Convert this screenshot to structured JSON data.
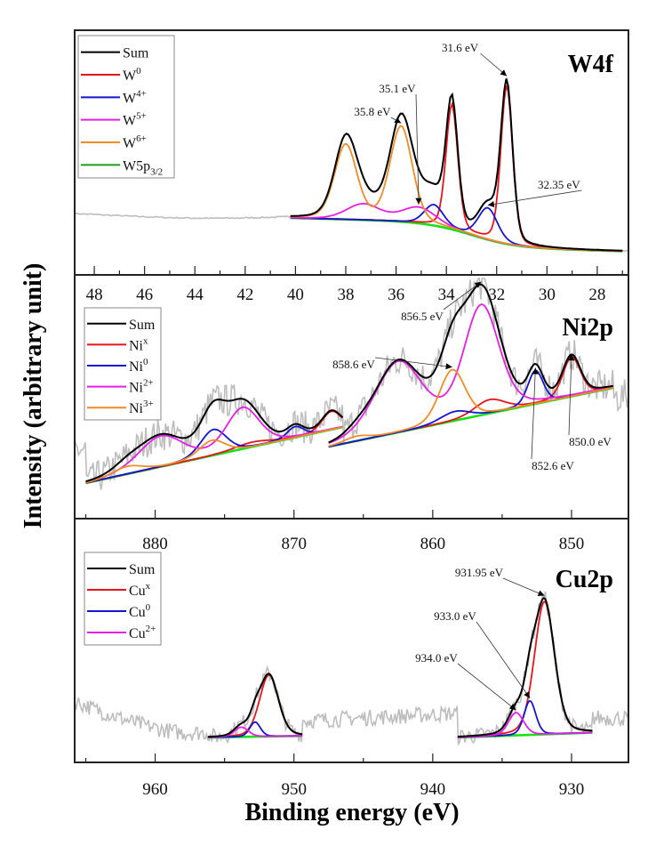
{
  "chart_data": {
    "type": "line",
    "ylabel": "Intensity (arbitrary unit)",
    "xlabel": "Binding energy (eV)",
    "panels": [
      {
        "id": "w4f",
        "title": "W4f",
        "xlim": [
          48.78,
          26.76
        ],
        "xticks": [
          48,
          46,
          44,
          42,
          40,
          38,
          36,
          34,
          32,
          30,
          28
        ],
        "minor_step": 1,
        "legend": [
          {
            "label": "Sum",
            "sup": "",
            "sub": "",
            "color": "#000000"
          },
          {
            "label": "W",
            "sup": "0",
            "sub": "",
            "color": "#e8141c"
          },
          {
            "label": "W",
            "sup": "4+",
            "sub": "",
            "color": "#1414d2"
          },
          {
            "label": "W",
            "sup": "5+",
            "sub": "",
            "color": "#e61ee6"
          },
          {
            "label": "W",
            "sup": "6+",
            "sub": "",
            "color": "#f08c28"
          },
          {
            "label": "W5p",
            "sup": "",
            "sub": "3/2",
            "color": "#18a018"
          }
        ],
        "fit_range": [
          40.2,
          27.0
        ],
        "raw_range": [
          48.78,
          27.0
        ],
        "baseline": {
          "left": 0.0,
          "right": -0.21,
          "step_center": 33.0
        },
        "components": [
          {
            "name": "W0",
            "color": "#e8141c",
            "peaks": [
              {
                "center": 31.6,
                "height": 1.0,
                "fwhm": 0.55
              },
              {
                "center": 33.78,
                "height": 0.79,
                "fwhm": 0.55
              }
            ]
          },
          {
            "name": "W4+",
            "color": "#1414d2",
            "peaks": [
              {
                "center": 32.35,
                "height": 0.2,
                "fwhm": 0.9
              },
              {
                "center": 34.5,
                "height": 0.13,
                "fwhm": 0.9
              }
            ]
          },
          {
            "name": "W5+",
            "color": "#e61ee6",
            "peaks": [
              {
                "center": 35.1,
                "height": 0.1,
                "fwhm": 1.6
              },
              {
                "center": 37.3,
                "height": 0.1,
                "fwhm": 1.6
              }
            ]
          },
          {
            "name": "W6+",
            "color": "#f08c28",
            "peaks": [
              {
                "center": 35.8,
                "height": 0.6,
                "fwhm": 1.05
              },
              {
                "center": 38.0,
                "height": 0.47,
                "fwhm": 1.05
              }
            ]
          }
        ],
        "annotations": [
          {
            "text": "31.6 eV",
            "target": 31.6
          },
          {
            "text": "35.1 eV",
            "target": 35.1
          },
          {
            "text": "35.8 eV",
            "target": 35.8
          },
          {
            "text": "32.35 eV",
            "target": 32.35
          }
        ],
        "noise": 0.004
      },
      {
        "id": "ni2p",
        "title": "Ni2p",
        "xlim": [
          885.8,
          845.9
        ],
        "xticks": [
          880,
          870,
          860,
          850
        ],
        "minor_step": 5,
        "legend": [
          {
            "label": "Sum",
            "sup": "",
            "sub": "",
            "color": "#000000"
          },
          {
            "label": "Ni",
            "sup": "x",
            "sub": "",
            "color": "#e8141c"
          },
          {
            "label": "Ni",
            "sup": "0",
            "sub": "",
            "color": "#1414d2"
          },
          {
            "label": "Ni",
            "sup": "2+",
            "sub": "",
            "color": "#e61ee6"
          },
          {
            "label": "Ni",
            "sup": "3+",
            "sub": "",
            "color": "#f08c28"
          }
        ],
        "regions": [
          {
            "fit_range": [
              885.0,
              866.5
            ],
            "baseline": {
              "left": 0.0,
              "right": 0.37
            },
            "components": [
              {
                "name": "Nix",
                "color": "#e8141c",
                "peaks": [
                  {
                    "center": 867.3,
                    "height": 0.12,
                    "fwhm": 1.6
                  },
                  {
                    "center": 873.0,
                    "height": 0.03,
                    "fwhm": 3.0
                  }
                ]
              },
              {
                "name": "Ni0",
                "color": "#1414d2",
                "peaks": [
                  {
                    "center": 875.8,
                    "height": 0.17,
                    "fwhm": 2.2
                  },
                  {
                    "center": 869.9,
                    "height": 0.07,
                    "fwhm": 1.4
                  }
                ]
              },
              {
                "name": "Ni2+",
                "color": "#e61ee6",
                "peaks": [
                  {
                    "center": 879.6,
                    "height": 0.2,
                    "fwhm": 3.8
                  },
                  {
                    "center": 873.7,
                    "height": 0.27,
                    "fwhm": 2.8
                  }
                ]
              },
              {
                "name": "Ni3+",
                "color": "#f08c28",
                "peaks": [
                  {
                    "center": 875.9,
                    "height": 0.1,
                    "fwhm": 2.2
                  },
                  {
                    "center": 882.0,
                    "height": 0.05,
                    "fwhm": 2.5
                  }
                ]
              }
            ]
          },
          {
            "fit_range": [
              867.5,
              847.0
            ],
            "baseline": {
              "left": 0.24,
              "right": 0.63
            },
            "components": [
              {
                "name": "Nix",
                "color": "#e8141c",
                "peaks": [
                  {
                    "center": 850.0,
                    "height": 0.26,
                    "fwhm": 1.5
                  },
                  {
                    "center": 855.9,
                    "height": 0.09,
                    "fwhm": 2.6
                  }
                ]
              },
              {
                "name": "Ni0",
                "color": "#1414d2",
                "peaks": [
                  {
                    "center": 852.6,
                    "height": 0.22,
                    "fwhm": 1.3
                  },
                  {
                    "center": 858.4,
                    "height": 0.06,
                    "fwhm": 2.5
                  }
                ]
              },
              {
                "name": "Ni2+",
                "color": "#e61ee6",
                "peaks": [
                  {
                    "center": 856.5,
                    "height": 0.72,
                    "fwhm": 3.0
                  },
                  {
                    "center": 862.5,
                    "height": 0.46,
                    "fwhm": 4.0
                  }
                ]
              },
              {
                "name": "Ni3+",
                "color": "#f08c28",
                "peaks": [
                  {
                    "center": 858.6,
                    "height": 0.34,
                    "fwhm": 2.2
                  },
                  {
                    "center": 865.5,
                    "height": 0.03,
                    "fwhm": 2.0
                  }
                ]
              }
            ]
          }
        ],
        "annotations": [
          {
            "text": "856.5 eV",
            "target": 856.5
          },
          {
            "text": "858.6 eV",
            "target": 858.6
          },
          {
            "text": "852.6 eV",
            "target": 852.6
          },
          {
            "text": "850.0 eV",
            "target": 850.0
          }
        ],
        "noise": 0.11
      },
      {
        "id": "cu2p",
        "title": "Cu2p",
        "xlim": [
          965.8,
          925.9
        ],
        "xticks": [
          960,
          950,
          940,
          930
        ],
        "minor_step": 5,
        "legend": [
          {
            "label": "Sum",
            "sup": "",
            "sub": "",
            "color": "#000000"
          },
          {
            "label": "Cu",
            "sup": "x",
            "sub": "",
            "color": "#e8141c"
          },
          {
            "label": "Cu",
            "sup": "0",
            "sub": "",
            "color": "#1414d2"
          },
          {
            "label": "Cu",
            "sup": "2+",
            "sub": "",
            "color": "#e61ee6"
          }
        ],
        "regions": [
          {
            "fit_range": [
              956.2,
              949.4
            ],
            "baseline": {
              "left": 0.0,
              "right": 0.01
            },
            "components": [
              {
                "name": "Cux",
                "color": "#e8141c",
                "peaks": [
                  {
                    "center": 951.8,
                    "height": 0.38,
                    "fwhm": 1.6
                  }
                ]
              },
              {
                "name": "Cu0",
                "color": "#1414d2",
                "peaks": [
                  {
                    "center": 952.8,
                    "height": 0.09,
                    "fwhm": 0.9
                  }
                ]
              },
              {
                "name": "Cu2+",
                "color": "#e61ee6",
                "peaks": [
                  {
                    "center": 953.8,
                    "height": 0.06,
                    "fwhm": 1.2
                  }
                ]
              }
            ]
          },
          {
            "fit_range": [
              938.2,
              928.5
            ],
            "baseline": {
              "left": 0.0,
              "right": 0.03
            },
            "components": [
              {
                "name": "Cux",
                "color": "#e8141c",
                "peaks": [
                  {
                    "center": 931.95,
                    "height": 0.82,
                    "fwhm": 1.7
                  }
                ]
              },
              {
                "name": "Cu0",
                "color": "#1414d2",
                "peaks": [
                  {
                    "center": 933.0,
                    "height": 0.21,
                    "fwhm": 1.0
                  }
                ]
              },
              {
                "name": "Cu2+",
                "color": "#e61ee6",
                "peaks": [
                  {
                    "center": 934.0,
                    "height": 0.14,
                    "fwhm": 1.3
                  }
                ]
              }
            ]
          }
        ],
        "annotations": [
          {
            "text": "931.95 eV",
            "target": 931.95
          },
          {
            "text": "933.0 eV",
            "target": 933.0
          },
          {
            "text": "934.0 eV",
            "target": 934.0
          }
        ],
        "noise": 0.05
      }
    ],
    "background_color": "#18e018",
    "raw_color": "#bdbdbd"
  }
}
